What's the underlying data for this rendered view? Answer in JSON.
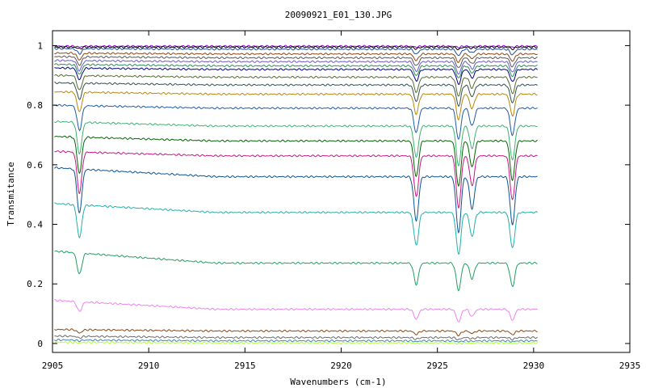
{
  "chart_data": {
    "type": "line",
    "title": "20090921_E01_130.JPG",
    "xlabel": "Wavenumbers (cm-1)",
    "ylabel": "Transmitance",
    "xlim": [
      2905,
      2935
    ],
    "ylim": [
      -0.03,
      1.05
    ],
    "x_ticks": [
      2905,
      2910,
      2915,
      2920,
      2925,
      2930,
      2935
    ],
    "y_ticks": [
      0,
      0.2,
      0.4,
      0.6,
      0.8,
      1
    ],
    "x_tick_labels": [
      "2905",
      "2910",
      "2915",
      "2920",
      "2925",
      "2930",
      "2935"
    ],
    "y_tick_labels": [
      "0",
      "0.2",
      "0.4",
      "0.6",
      "0.8",
      "1"
    ],
    "grid": false,
    "legend": "none",
    "x_range": [
      2905.1,
      2930.2
    ],
    "absorption_lines": [
      {
        "x": 2906.4,
        "rel_depth": 0.55
      },
      {
        "x": 2923.9,
        "rel_depth": 0.55
      },
      {
        "x": 2926.1,
        "rel_depth": 0.7
      },
      {
        "x": 2926.8,
        "rel_depth": 0.4
      },
      {
        "x": 2928.9,
        "rel_depth": 0.6
      }
    ],
    "series": [
      {
        "baseline": 0.998,
        "tilt": 0.0,
        "line_depth": 0.005,
        "color": "#9400d3"
      },
      {
        "baseline": 0.995,
        "tilt": 0.0,
        "line_depth": 0.01,
        "color": "#000000"
      },
      {
        "baseline": 0.99,
        "tilt": 0.002,
        "line_depth": 0.03,
        "color": "#1f4e9a"
      },
      {
        "baseline": 0.975,
        "tilt": 0.003,
        "line_depth": 0.04,
        "color": "#8b4513"
      },
      {
        "baseline": 0.963,
        "tilt": 0.004,
        "line_depth": 0.05,
        "color": "#555555"
      },
      {
        "baseline": 0.95,
        "tilt": 0.004,
        "line_depth": 0.06,
        "color": "#6a5acd"
      },
      {
        "baseline": 0.937,
        "tilt": 0.005,
        "line_depth": 0.06,
        "color": "#2e8b57"
      },
      {
        "baseline": 0.925,
        "tilt": 0.005,
        "line_depth": 0.07,
        "color": "#00008b"
      },
      {
        "baseline": 0.9,
        "tilt": 0.006,
        "line_depth": 0.09,
        "color": "#556b2f"
      },
      {
        "baseline": 0.875,
        "tilt": 0.007,
        "line_depth": 0.1,
        "color": "#2f4f4f"
      },
      {
        "baseline": 0.845,
        "tilt": 0.008,
        "line_depth": 0.12,
        "color": "#b8860b"
      },
      {
        "baseline": 0.8,
        "tilt": 0.01,
        "line_depth": 0.15,
        "color": "#1e5aa8"
      },
      {
        "baseline": 0.745,
        "tilt": 0.015,
        "line_depth": 0.19,
        "color": "#3cb371"
      },
      {
        "baseline": 0.695,
        "tilt": 0.015,
        "line_depth": 0.22,
        "color": "#006400"
      },
      {
        "baseline": 0.645,
        "tilt": 0.015,
        "line_depth": 0.25,
        "color": "#c71585"
      },
      {
        "baseline": 0.59,
        "tilt": 0.03,
        "line_depth": 0.27,
        "color": "#0b5394"
      },
      {
        "baseline": 0.47,
        "tilt": 0.03,
        "line_depth": 0.2,
        "color": "#20b2aa"
      },
      {
        "baseline": 0.31,
        "tilt": 0.04,
        "line_depth": 0.13,
        "color": "#20a060"
      },
      {
        "baseline": 0.145,
        "tilt": 0.03,
        "line_depth": 0.06,
        "color": "#ee82ee"
      },
      {
        "baseline": 0.047,
        "tilt": 0.005,
        "line_depth": 0.02,
        "color": "#8b4513"
      },
      {
        "baseline": 0.025,
        "tilt": 0.005,
        "line_depth": 0.01,
        "color": "#696969"
      },
      {
        "baseline": 0.012,
        "tilt": 0.003,
        "line_depth": 0.005,
        "color": "#4682b4"
      },
      {
        "baseline": 0.004,
        "tilt": 0.002,
        "line_depth": 0.003,
        "color": "#adff2f"
      }
    ]
  }
}
